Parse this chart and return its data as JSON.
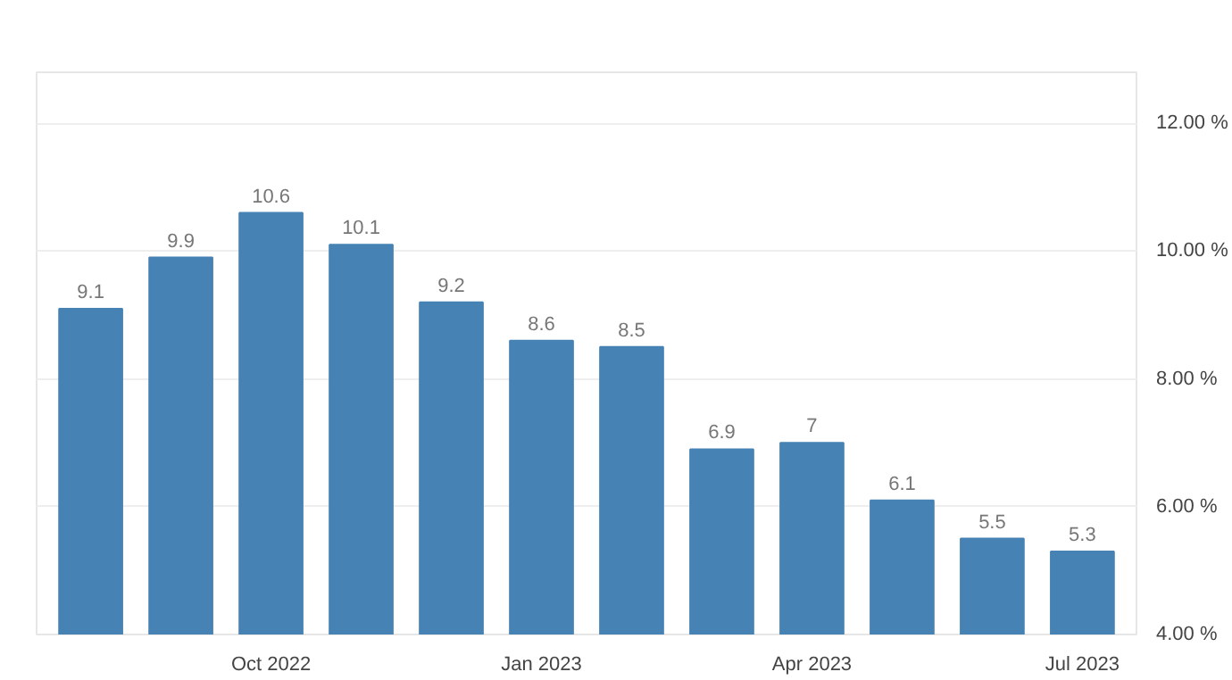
{
  "chart_data": {
    "type": "bar",
    "categories": [
      null,
      null,
      "Oct 2022",
      null,
      null,
      "Jan 2023",
      null,
      null,
      "Apr 2023",
      null,
      null,
      "Jul 2023"
    ],
    "values": [
      9.1,
      9.9,
      10.6,
      10.1,
      9.2,
      8.6,
      8.5,
      6.9,
      7,
      6.1,
      5.5,
      5.3
    ],
    "color": "#4682b4",
    "ylim": [
      4,
      12.8
    ],
    "yticks": [
      {
        "value": 4,
        "label": "4.00 %"
      },
      {
        "value": 6,
        "label": "6.00 %"
      },
      {
        "value": 8,
        "label": "8.00 %"
      },
      {
        "value": 10,
        "label": "10.00 %"
      },
      {
        "value": 12,
        "label": "12.00 %"
      }
    ],
    "grid": "y",
    "data_labels": true
  }
}
